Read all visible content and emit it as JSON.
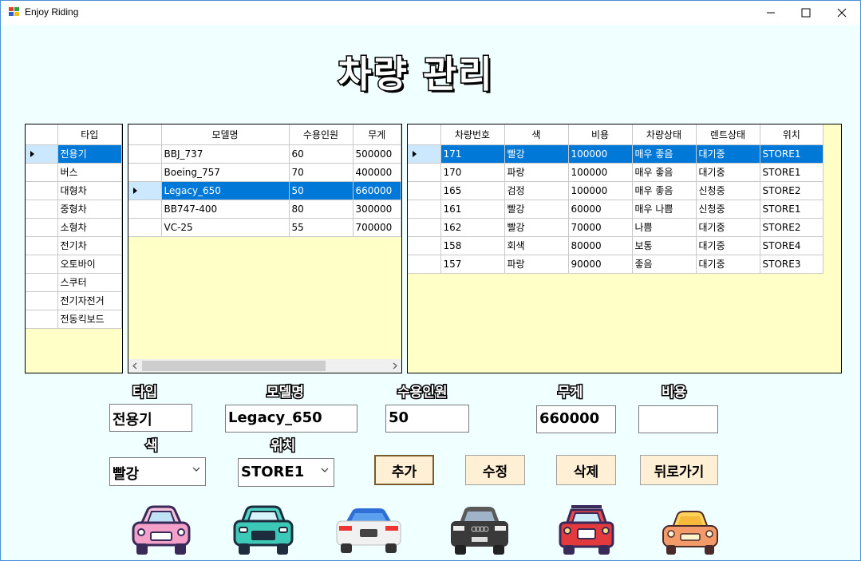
{
  "window": {
    "title": "Enjoy Riding"
  },
  "heading": "차량 관리",
  "type_grid": {
    "header": "타입",
    "rows": [
      "전용기",
      "버스",
      "대형차",
      "중형차",
      "소형차",
      "전기차",
      "오토바이",
      "스쿠터",
      "전기자전거",
      "전동킥보드"
    ],
    "selected_index": 0
  },
  "model_grid": {
    "headers": [
      "모델명",
      "수용인원",
      "무게"
    ],
    "rows": [
      [
        "BBJ_737",
        "60",
        "500000"
      ],
      [
        "Boeing_757",
        "70",
        "400000"
      ],
      [
        "Legacy_650",
        "50",
        "660000"
      ],
      [
        "BB747-400",
        "80",
        "300000"
      ],
      [
        "VC-25",
        "55",
        "700000"
      ]
    ],
    "selected_index": 2
  },
  "vehicle_grid": {
    "headers": [
      "차량번호",
      "색",
      "비용",
      "차량상태",
      "렌트상태",
      "위치"
    ],
    "rows": [
      [
        "171",
        "빨강",
        "100000",
        "매우 좋음",
        "대기중",
        "STORE1"
      ],
      [
        "170",
        "파랑",
        "100000",
        "매우 좋음",
        "대기중",
        "STORE1"
      ],
      [
        "165",
        "검정",
        "100000",
        "매우 좋음",
        "신청중",
        "STORE2"
      ],
      [
        "161",
        "빨강",
        "60000",
        "매우 나쁨",
        "신청중",
        "STORE1"
      ],
      [
        "162",
        "빨강",
        "70000",
        "나쁨",
        "대기중",
        "STORE2"
      ],
      [
        "158",
        "회색",
        "80000",
        "보통",
        "대기중",
        "STORE4"
      ],
      [
        "157",
        "파랑",
        "90000",
        "좋음",
        "대기중",
        "STORE3"
      ]
    ],
    "selected_index": 0
  },
  "form": {
    "type_label": "타입",
    "type_value": "전용기",
    "model_label": "모델명",
    "model_value": "Legacy_650",
    "capacity_label": "수용인원",
    "capacity_value": "50",
    "weight_label": "무게",
    "weight_value": "660000",
    "cost_label": "비용",
    "cost_value": "",
    "color_label": "색",
    "color_value": "빨강",
    "location_label": "위치",
    "location_value": "STORE1"
  },
  "buttons": {
    "add": "추가",
    "edit": "수정",
    "delete": "삭제",
    "back": "뒤로가기"
  },
  "colors": {
    "selection": "#0078d7",
    "grid_bg": "#ffffc8",
    "form_bg": "#f0ffff",
    "button_bg": "#ffefd5"
  },
  "car_icons": [
    "pink-car-icon",
    "teal-car-icon",
    "white-car-icon",
    "black-car-icon",
    "red-car-icon",
    "orange-car-icon"
  ]
}
